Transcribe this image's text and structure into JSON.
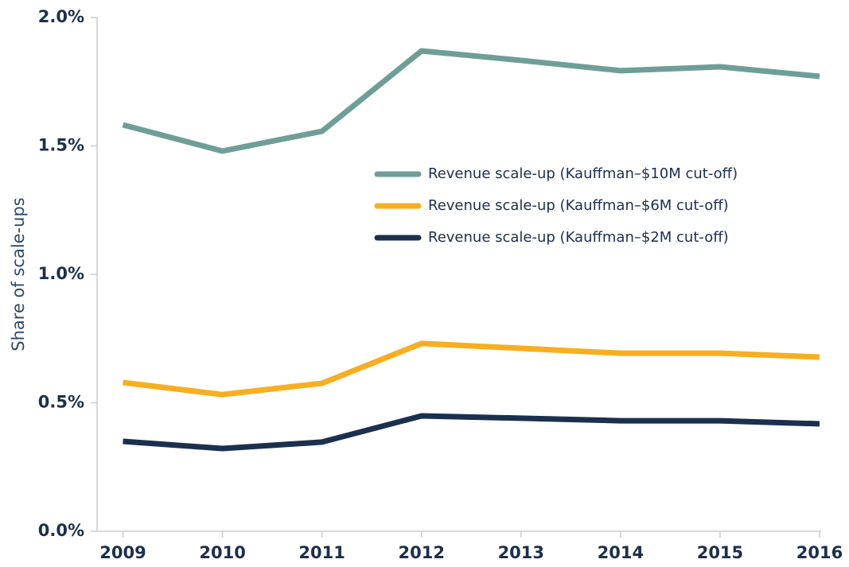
{
  "chart_data": {
    "type": "line",
    "y_label": "Share of scale-ups",
    "x": [
      2009,
      2010,
      2011,
      2012,
      2013,
      2014,
      2015,
      2016
    ],
    "xlim": [
      2008.74,
      2016
    ],
    "xticks": [
      2009,
      2010,
      2011,
      2012,
      2013,
      2014,
      2015,
      2016
    ],
    "ylim": [
      0,
      2
    ],
    "yticks": [
      {
        "value": 0,
        "label": "0.0%"
      },
      {
        "value": 0.5,
        "label": "0.5%"
      },
      {
        "value": 1,
        "label": "1.0%"
      },
      {
        "value": 1.5,
        "label": "1.5%"
      },
      {
        "value": 2,
        "label": "2.0%"
      }
    ],
    "series": [
      {
        "name": "Revenue scale-up (Kauffman–$10M cut-off)",
        "color": "#6f9e98",
        "values": [
          1.582,
          1.48,
          1.557,
          1.87,
          1.833,
          1.793,
          1.808,
          1.771
        ]
      },
      {
        "name": "Revenue scale-up (Kauffman–$6M cut-off)",
        "color": "#f7ae1f",
        "values": [
          0.579,
          0.532,
          0.576,
          0.731,
          0.712,
          0.693,
          0.693,
          0.678
        ]
      },
      {
        "name": "Revenue scale-up (Kauffman–$2M cut-off)",
        "color": "#1b2f4e",
        "values": [
          0.35,
          0.322,
          0.347,
          0.449,
          0.44,
          0.43,
          0.43,
          0.418
        ]
      }
    ]
  }
}
